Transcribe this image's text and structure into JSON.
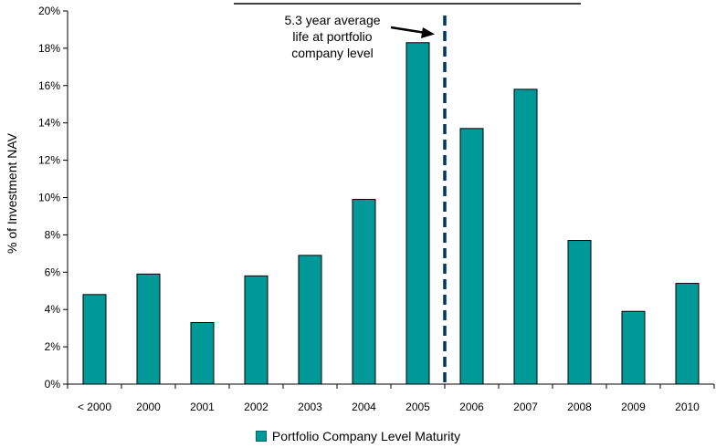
{
  "chart_data": {
    "type": "bar",
    "categories": [
      "< 2000",
      "2000",
      "2001",
      "2002",
      "2003",
      "2004",
      "2005",
      "2006",
      "2007",
      "2008",
      "2009",
      "2010"
    ],
    "series": [
      {
        "name": "Portfolio Company Level Maturity",
        "values": [
          4.8,
          5.9,
          3.3,
          5.8,
          6.9,
          9.9,
          18.3,
          13.7,
          15.8,
          7.7,
          3.9,
          5.4
        ]
      }
    ],
    "ylabel": "% of Investment NAV",
    "ylim": [
      0,
      20
    ],
    "yticks": [
      "0%",
      "2%",
      "4%",
      "6%",
      "8%",
      "10%",
      "12%",
      "14%",
      "16%",
      "18%",
      "20%"
    ],
    "legend_position": "bottom",
    "grid": false,
    "annotation": {
      "lines": [
        "5.3 year average",
        "life at portfolio",
        "company level"
      ],
      "between_categories": [
        "2005",
        "2006"
      ]
    },
    "colors": {
      "bar_fill": "#009999",
      "bar_stroke": "#000000",
      "reference_line": "#003366"
    }
  }
}
